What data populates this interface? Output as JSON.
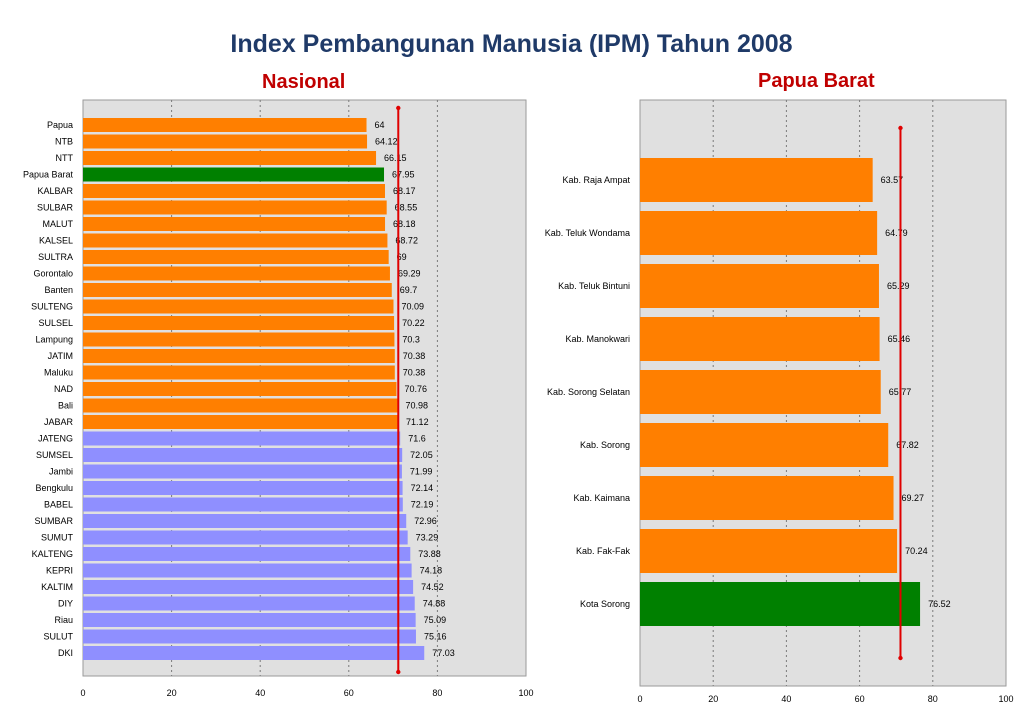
{
  "page": {
    "title": "Index Pembangunan Manusia (IPM) Tahun 2008"
  },
  "chart_data": [
    {
      "type": "bar",
      "orientation": "horizontal",
      "title": "Nasional",
      "xlim": [
        0,
        100
      ],
      "xticks": [
        "0",
        "20",
        "40",
        "60",
        "80",
        "100"
      ],
      "grid": "vertical dotted",
      "reference_line": 71.17,
      "colors": {
        "low": "#ff7f00",
        "highlight": "#008000",
        "high": "#8f8fff",
        "line": "#e00000",
        "plot_bg": "#e0e0e0"
      },
      "categories": [
        "Papua",
        "NTB",
        "NTT",
        "Papua Barat",
        "KALBAR",
        "SULBAR",
        "MALUT",
        "KALSEL",
        "SULTRA",
        "Gorontalo",
        "Banten",
        "SULTENG",
        "SULSEL",
        "Lampung",
        "JATIM",
        "Maluku",
        "NAD",
        "Bali",
        "JABAR",
        "JATENG",
        "SUMSEL",
        "Jambi",
        "Bengkulu",
        "BABEL",
        "SUMBAR",
        "SUMUT",
        "KALTENG",
        "KEPRI",
        "KALTIM",
        "DIY",
        "Riau",
        "SULUT",
        "DKI"
      ],
      "values": [
        64,
        64.12,
        66.15,
        67.95,
        68.17,
        68.55,
        68.18,
        68.72,
        69,
        69.29,
        69.7,
        70.09,
        70.22,
        70.3,
        70.38,
        70.38,
        70.76,
        70.98,
        71.12,
        71.6,
        72.05,
        71.99,
        72.14,
        72.19,
        72.96,
        73.29,
        73.88,
        74.18,
        74.52,
        74.88,
        75.09,
        75.16,
        77.03
      ],
      "value_labels": [
        "64",
        "64.12",
        "66.15",
        "67.95",
        "68.17",
        "68.55",
        "68.18",
        "68.72",
        "69",
        "69.29",
        "69.7",
        "70.09",
        "70.22",
        "70.3",
        "70.38",
        "70.38",
        "70.76",
        "70.98",
        "71.12",
        "71.6",
        "72.05",
        "71.99",
        "72.14",
        "72.19",
        "72.96",
        "73.29",
        "73.88",
        "74.18",
        "74.52",
        "74.88",
        "75.09",
        "75.16",
        "77.03"
      ],
      "bar_colors": [
        "low",
        "low",
        "low",
        "highlight",
        "low",
        "low",
        "low",
        "low",
        "low",
        "low",
        "low",
        "low",
        "low",
        "low",
        "low",
        "low",
        "low",
        "low",
        "low",
        "high",
        "high",
        "high",
        "high",
        "high",
        "high",
        "high",
        "high",
        "high",
        "high",
        "high",
        "high",
        "high",
        "high"
      ]
    },
    {
      "type": "bar",
      "orientation": "horizontal",
      "title": "Papua Barat",
      "xlim": [
        0,
        100
      ],
      "xticks": [
        "0",
        "20",
        "40",
        "60",
        "80",
        "100"
      ],
      "grid": "vertical dotted",
      "reference_line": 71.17,
      "colors": {
        "low": "#ff7f00",
        "highlight": "#008000",
        "line": "#e00000",
        "plot_bg": "#e0e0e0"
      },
      "categories": [
        "Kab. Raja Ampat",
        "Kab. Teluk Wondama",
        "Kab. Teluk Bintuni",
        "Kab. Manokwari",
        "Kab. Sorong Selatan",
        "Kab. Sorong",
        "Kab. Kaimana",
        "Kab. Fak-Fak",
        "Kota Sorong"
      ],
      "values": [
        63.57,
        64.79,
        65.29,
        65.46,
        65.77,
        67.82,
        69.27,
        70.24,
        76.52
      ],
      "value_labels": [
        "63.57",
        "64.79",
        "65.29",
        "65.46",
        "65.77",
        "67.82",
        "69.27",
        "70.24",
        "76.52"
      ],
      "bar_colors": [
        "low",
        "low",
        "low",
        "low",
        "low",
        "low",
        "low",
        "low",
        "highlight"
      ]
    }
  ]
}
